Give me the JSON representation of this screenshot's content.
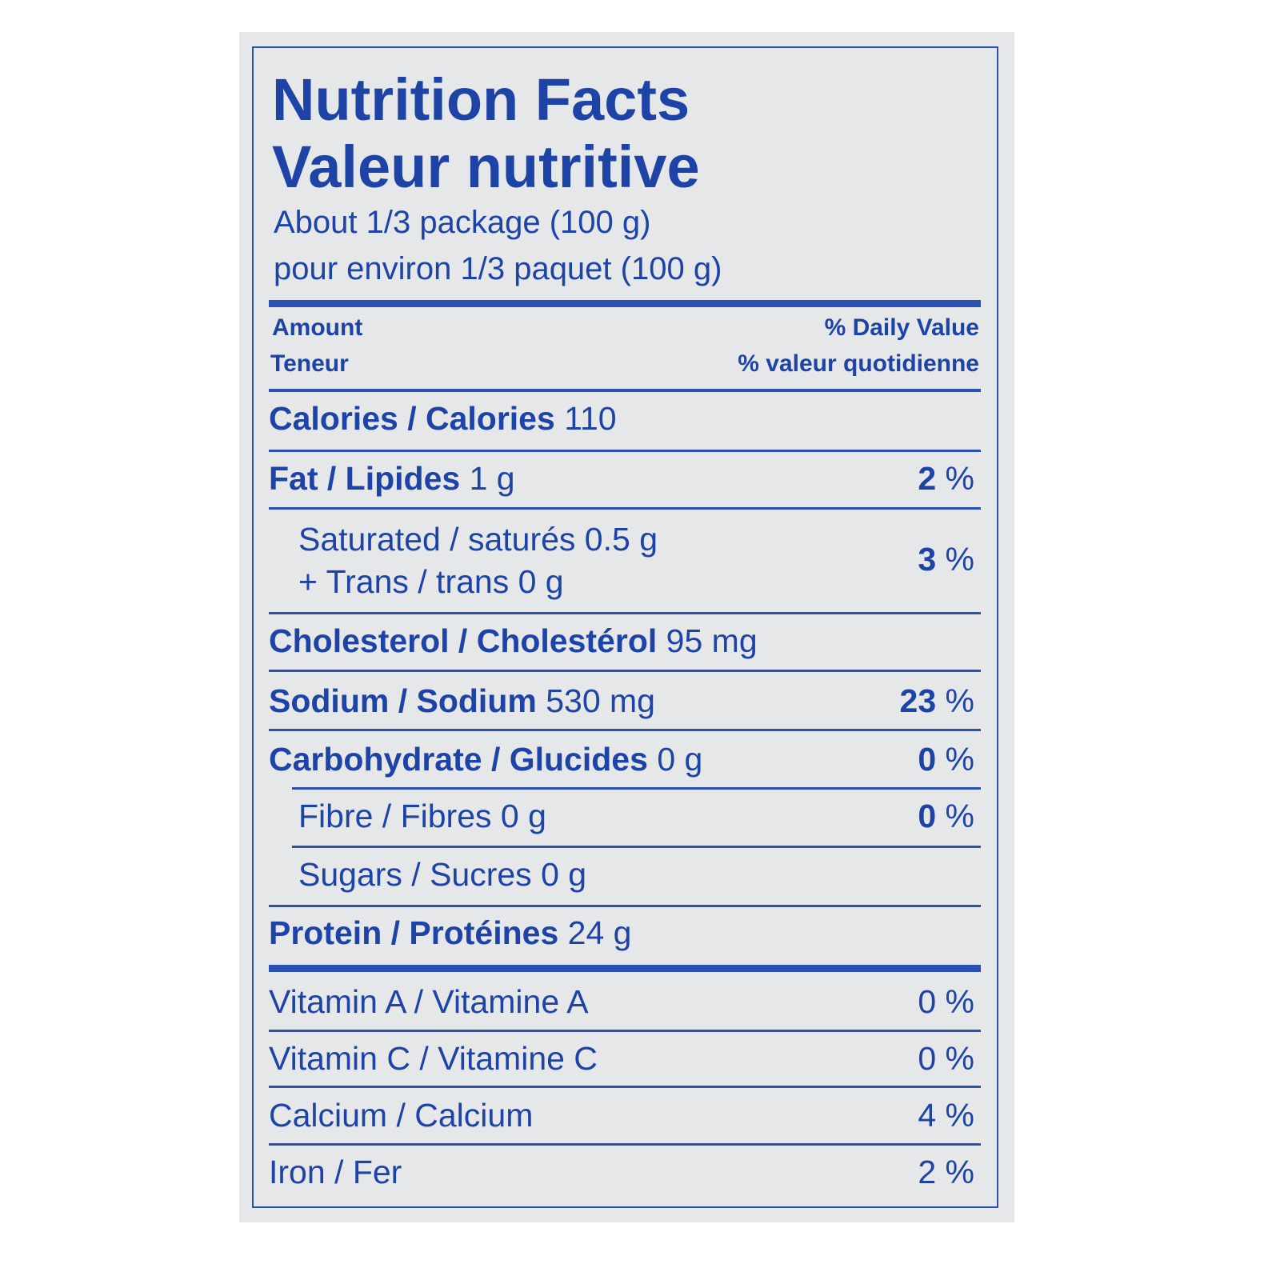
{
  "title_en": "Nutrition Facts",
  "title_fr": "Valeur nutritive",
  "serving_en": "About 1/3 package (100 g)",
  "serving_fr": "pour environ 1/3 paquet (100 g)",
  "header": {
    "amount_en": "Amount",
    "amount_fr": "Teneur",
    "dv_en": "% Daily Value",
    "dv_fr": "% valeur quotidienne"
  },
  "rows": [
    {
      "label": "Calories / Calories",
      "value": "110",
      "dv": "",
      "unit": ""
    },
    {
      "label": "Fat / Lipides",
      "value": "1 g",
      "dv": "2",
      "unit": " %"
    },
    {
      "label": "Saturated / saturés 0.5 g",
      "label2": "+ Trans / trans 0 g",
      "dv": "3",
      "unit": " %"
    },
    {
      "label": "Cholesterol / Cholestérol",
      "value": "95 mg",
      "dv": "",
      "unit": ""
    },
    {
      "label": "Sodium / Sodium",
      "value": "530 mg",
      "dv": "23",
      "unit": " %"
    },
    {
      "label": "Carbohydrate / Glucides",
      "value": "0 g",
      "dv": "0",
      "unit": " %"
    },
    {
      "label": "Fibre / Fibres 0 g",
      "dv": "0",
      "unit": " %"
    },
    {
      "label": "Sugars / Sucres 0 g"
    },
    {
      "label": "Protein / Protéines",
      "value": "24 g"
    }
  ],
  "vitamins": [
    {
      "label": "Vitamin A / Vitamine A",
      "dv": "0 %"
    },
    {
      "label": "Vitamin C / Vitamine C",
      "dv": "0 %"
    },
    {
      "label": "Calcium / Calcium",
      "dv": "4 %"
    },
    {
      "label": "Iron / Fer",
      "dv": "2 %"
    }
  ],
  "colors": {
    "ink": "#1d43a6",
    "background": "#e5e7e8"
  }
}
